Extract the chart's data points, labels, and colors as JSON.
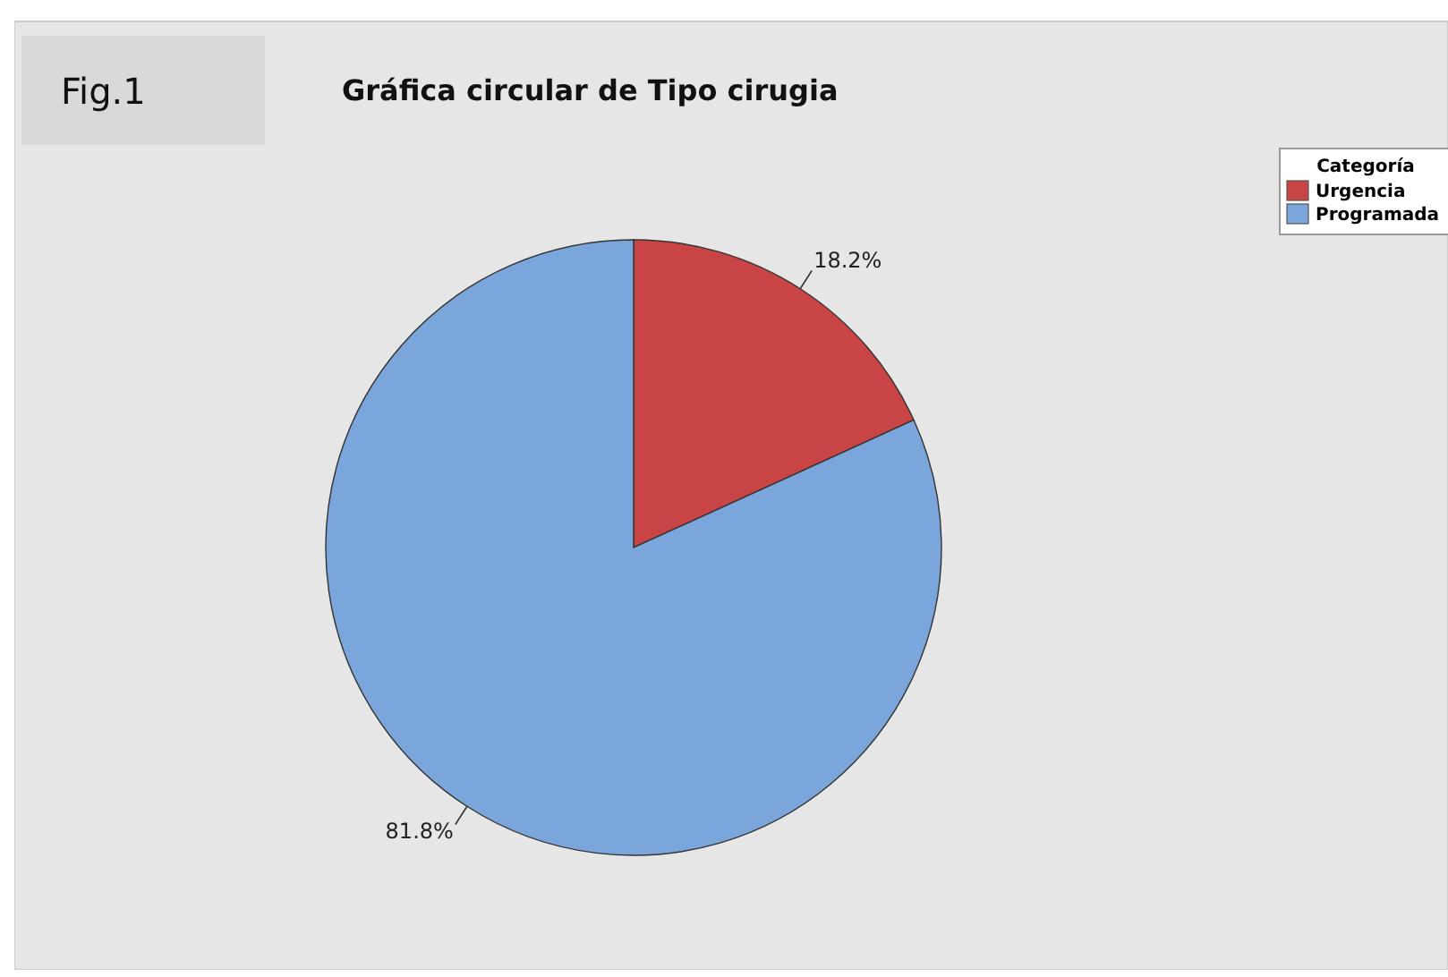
{
  "chart_data": {
    "type": "pie",
    "title": "Gráfica circular de Tipo cirugia",
    "legend_title": "Categoría",
    "annotations": [
      "Fig.1"
    ],
    "categories": [
      "Urgencia",
      "Programada"
    ],
    "values": [
      18.2,
      81.8
    ],
    "value_labels": [
      "18.2%",
      "81.8%"
    ],
    "colors": [
      "#c94545",
      "#7ba6db"
    ],
    "legend": "top right"
  }
}
